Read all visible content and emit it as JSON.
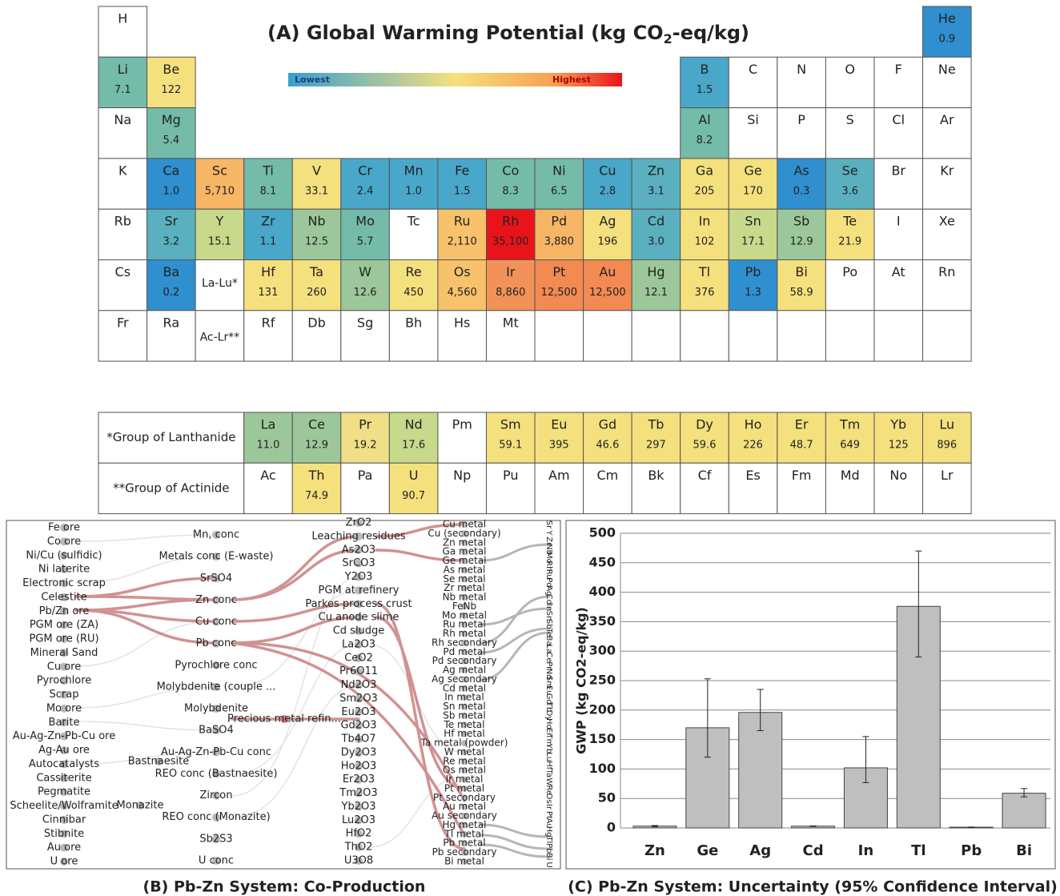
{
  "pt": {
    "title": [
      "(A) Global Warming Potential (kg CO",
      "2",
      "-eq/kg)"
    ],
    "legend": {
      "low": "Lowest",
      "high": "Highest"
    },
    "rows": [
      [
        {
          "symbol": "H"
        },
        null,
        null,
        null,
        null,
        null,
        null,
        null,
        null,
        null,
        null,
        null,
        null,
        null,
        null,
        null,
        null,
        {
          "symbol": "He",
          "value": "0.9",
          "color": "#2f8fcf"
        }
      ],
      [
        {
          "symbol": "Li",
          "value": "7.1",
          "color": "#74bba9"
        },
        {
          "symbol": "Be",
          "value": "122",
          "color": "#f5e07e"
        },
        null,
        null,
        null,
        null,
        null,
        null,
        null,
        null,
        null,
        null,
        {
          "symbol": "B",
          "value": "1.5",
          "color": "#49a7c9"
        },
        {
          "symbol": "C"
        },
        {
          "symbol": "N"
        },
        {
          "symbol": "O"
        },
        {
          "symbol": "F"
        },
        {
          "symbol": "Ne"
        }
      ],
      [
        {
          "symbol": "Na"
        },
        {
          "symbol": "Mg",
          "value": "5.4",
          "color": "#74bba9"
        },
        null,
        null,
        null,
        null,
        null,
        null,
        null,
        null,
        null,
        null,
        {
          "symbol": "Al",
          "value": "8.2",
          "color": "#74bba9"
        },
        {
          "symbol": "Si"
        },
        {
          "symbol": "P"
        },
        {
          "symbol": "S"
        },
        {
          "symbol": "Cl"
        },
        {
          "symbol": "Ar"
        }
      ],
      [
        {
          "symbol": "K"
        },
        {
          "symbol": "Ca",
          "value": "1.0",
          "color": "#2f8fcf"
        },
        {
          "symbol": "Sc",
          "value": "5,710",
          "color": "#f7b566"
        },
        {
          "symbol": "Ti",
          "value": "8.1",
          "color": "#74bba9"
        },
        {
          "symbol": "V",
          "value": "33.1",
          "color": "#f5e07e"
        },
        {
          "symbol": "Cr",
          "value": "2.4",
          "color": "#49a7c9"
        },
        {
          "symbol": "Mn",
          "value": "1.0",
          "color": "#49a7c9"
        },
        {
          "symbol": "Fe",
          "value": "1.5",
          "color": "#49a7c9"
        },
        {
          "symbol": "Co",
          "value": "8.3",
          "color": "#74bba9"
        },
        {
          "symbol": "Ni",
          "value": "6.5",
          "color": "#74bba9"
        },
        {
          "symbol": "Cu",
          "value": "2.8",
          "color": "#49a7c9"
        },
        {
          "symbol": "Zn",
          "value": "3.1",
          "color": "#5bb0bf"
        },
        {
          "symbol": "Ga",
          "value": "205",
          "color": "#f5e07e"
        },
        {
          "symbol": "Ge",
          "value": "170",
          "color": "#f5e07e"
        },
        {
          "symbol": "As",
          "value": "0.3",
          "color": "#2f8fcf"
        },
        {
          "symbol": "Se",
          "value": "3.6",
          "color": "#5bb0bf"
        },
        {
          "symbol": "Br"
        },
        {
          "symbol": "Kr"
        }
      ],
      [
        {
          "symbol": "Rb"
        },
        {
          "symbol": "Sr",
          "value": "3.2",
          "color": "#5bb0bf"
        },
        {
          "symbol": "Y",
          "value": "15.1",
          "color": "#c7d98a"
        },
        {
          "symbol": "Zr",
          "value": "1.1",
          "color": "#49a7c9"
        },
        {
          "symbol": "Nb",
          "value": "12.5",
          "color": "#9cc79a"
        },
        {
          "symbol": "Mo",
          "value": "5.7",
          "color": "#74bba9"
        },
        {
          "symbol": "Tc"
        },
        {
          "symbol": "Ru",
          "value": "2,110",
          "color": "#f7c26b"
        },
        {
          "symbol": "Rh",
          "value": "35,100",
          "color": "#e8141a"
        },
        {
          "symbol": "Pd",
          "value": "3,880",
          "color": "#f7b566"
        },
        {
          "symbol": "Ag",
          "value": "196",
          "color": "#f5e07e"
        },
        {
          "symbol": "Cd",
          "value": "3.0",
          "color": "#5bb0bf"
        },
        {
          "symbol": "In",
          "value": "102",
          "color": "#f5e07e"
        },
        {
          "symbol": "Sn",
          "value": "17.1",
          "color": "#c7d98a"
        },
        {
          "symbol": "Sb",
          "value": "12.9",
          "color": "#9cc79a"
        },
        {
          "symbol": "Te",
          "value": "21.9",
          "color": "#f5e07e"
        },
        {
          "symbol": "I"
        },
        {
          "symbol": "Xe"
        }
      ],
      [
        {
          "symbol": "Cs"
        },
        {
          "symbol": "Ba",
          "value": "0.2",
          "color": "#2f8fcf"
        },
        {
          "symbol": "La-Lu*"
        },
        {
          "symbol": "Hf",
          "value": "131",
          "color": "#f5e07e"
        },
        {
          "symbol": "Ta",
          "value": "260",
          "color": "#f5e07e"
        },
        {
          "symbol": "W",
          "value": "12.6",
          "color": "#9cc79a"
        },
        {
          "symbol": "Re",
          "value": "450",
          "color": "#f5e07e"
        },
        {
          "symbol": "Os",
          "value": "4,560",
          "color": "#f7c26b"
        },
        {
          "symbol": "Ir",
          "value": "8,860",
          "color": "#f29258"
        },
        {
          "symbol": "Pt",
          "value": "12,500",
          "color": "#f28a52"
        },
        {
          "symbol": "Au",
          "value": "12,500",
          "color": "#f28a52"
        },
        {
          "symbol": "Hg",
          "value": "12.1",
          "color": "#9cc79a"
        },
        {
          "symbol": "Tl",
          "value": "376",
          "color": "#f5e07e"
        },
        {
          "symbol": "Pb",
          "value": "1.3",
          "color": "#2f8fcf"
        },
        {
          "symbol": "Bi",
          "value": "58.9",
          "color": "#f5e07e"
        },
        {
          "symbol": "Po"
        },
        {
          "symbol": "At"
        },
        {
          "symbol": "Rn"
        }
      ],
      [
        {
          "symbol": "Fr"
        },
        {
          "symbol": "Ra"
        },
        {
          "symbol": "Ac-Lr**"
        },
        {
          "symbol": "Rf"
        },
        {
          "symbol": "Db"
        },
        {
          "symbol": "Sg"
        },
        {
          "symbol": "Bh"
        },
        {
          "symbol": "Hs"
        },
        {
          "symbol": "Mt"
        }
      ]
    ]
  },
  "f_block": {
    "rows": [
      {
        "label": "*Group of Lanthanide",
        "cells": [
          {
            "symbol": "La",
            "value": "11.0",
            "color": "#9cc79a"
          },
          {
            "symbol": "Ce",
            "value": "12.9",
            "color": "#9cc79a"
          },
          {
            "symbol": "Pr",
            "value": "19.2",
            "color": "#f0df86"
          },
          {
            "symbol": "Nd",
            "value": "17.6",
            "color": "#c7d98a"
          },
          {
            "symbol": "Pm"
          },
          {
            "symbol": "Sm",
            "value": "59.1",
            "color": "#f5e07e"
          },
          {
            "symbol": "Eu",
            "value": "395",
            "color": "#f5e07e"
          },
          {
            "symbol": "Gd",
            "value": "46.6",
            "color": "#f5e07e"
          },
          {
            "symbol": "Tb",
            "value": "297",
            "color": "#f5e07e"
          },
          {
            "symbol": "Dy",
            "value": "59.6",
            "color": "#f5e07e"
          },
          {
            "symbol": "Ho",
            "value": "226",
            "color": "#f5e07e"
          },
          {
            "symbol": "Er",
            "value": "48.7",
            "color": "#f5e07e"
          },
          {
            "symbol": "Tm",
            "value": "649",
            "color": "#f5e07e"
          },
          {
            "symbol": "Yb",
            "value": "125",
            "color": "#f5e07e"
          },
          {
            "symbol": "Lu",
            "value": "896",
            "color": "#f5e07e"
          }
        ]
      },
      {
        "label": "**Group of Actinide",
        "cells": [
          {
            "symbol": "Ac"
          },
          {
            "symbol": "Th",
            "value": "74.9",
            "color": "#f5e07e"
          },
          {
            "symbol": "Pa"
          },
          {
            "symbol": "U",
            "value": "90.7",
            "color": "#f5e07e"
          },
          {
            "symbol": "Np"
          },
          {
            "symbol": "Pu"
          },
          {
            "symbol": "Am"
          },
          {
            "symbol": "Cm"
          },
          {
            "symbol": "Bk"
          },
          {
            "symbol": "Cf"
          },
          {
            "symbol": "Es"
          },
          {
            "symbol": "Fm"
          },
          {
            "symbol": "Md"
          },
          {
            "symbol": "No"
          },
          {
            "symbol": "Lr"
          }
        ]
      }
    ]
  },
  "network": {
    "title": "(B) Pb-Zn System: Co-Production",
    "col1": [
      "Fe ore",
      "Co ore",
      "Ni/Cu (sulfidic)",
      "Ni laterite",
      "Electronic scrap",
      "Celestite",
      "Pb/Zn ore",
      "PGM ore (ZA)",
      "PGM ore (RU)",
      "Mineral Sand",
      "Cu ore",
      "Pyrochlore",
      "Scrap",
      "Mo ore",
      "Barite",
      "Au-Ag-Zn-Pb-Cu ore",
      "Ag-Au ore",
      "Autocatalysts",
      "Cassiterite",
      "Pegmatite",
      "Scheelite/Wolframite",
      "Cinnibar",
      "Stibnite",
      "Au ore",
      "U ore"
    ],
    "col2": [
      "Mn, conc",
      "Metals conc (E-waste)",
      "SrSO4",
      "Zn conc",
      "Cu conc",
      "Pb conc",
      "Pyrochlore conc",
      "Molybdenite (couple ...",
      "Molybdenite",
      "BaSO4",
      "Au-Ag-Zn-Pb-Cu conc",
      "REO conc (Bastnaesite)",
      "Zircon",
      "REO conc (Monazite)",
      "Sb2S3",
      "U conc"
    ],
    "col3": [
      "ZrO2",
      "Leaching residues",
      "As2O3",
      "SrCO3",
      "Y2O3",
      "PGM at refinery",
      "Parkes process crust",
      "Cu anode slime",
      "Cd sludge",
      "La2O3",
      "CeO2",
      "Pr6O11",
      "Nd2O3",
      "Sm2O3",
      "Eu2O3",
      "Gd2O3",
      "Tb4O7",
      "Dy2O3",
      "Ho2O3",
      "Er2O3",
      "Tm2O3",
      "Yb2O3",
      "Lu2O3",
      "HfO2",
      "ThO2",
      "U3O8"
    ],
    "col4": [
      "Cu metal",
      "Cu (secondary)",
      "Zn metal",
      "Ga metal",
      "Ge metal",
      "As metal",
      "Se metal",
      "Zr metal",
      "Nb metal",
      "FeNb",
      "Mo metal",
      "Ru metal",
      "Rh metal",
      "Rh secondary",
      "Pd metal",
      "Pd secondary",
      "Ag metal",
      "Ag secondary",
      "Cd metal",
      "In metal",
      "Sn metal",
      "Sb metal",
      "Te metal",
      "Hf metal",
      "Ta metal (powder)",
      "W metal",
      "Re metal",
      "Os metal",
      "Ir metal",
      "Pt metal",
      "Pt secondary",
      "Au metal",
      "Au secondary",
      "Hg metal",
      "Tl metal",
      "Pb metal",
      "Pb secondary",
      "Bi metal"
    ],
    "col5": [
      "Sr",
      "Y",
      "Zr",
      "Nb",
      "Mo",
      "Rh",
      "Ru",
      "Pd",
      "Ag",
      "Cd",
      "In",
      "Sn",
      "Sb",
      "Te",
      "Ba",
      "La",
      "Ce",
      "Pr",
      "Nd",
      "Sm",
      "Eu",
      "Gd",
      "Tb",
      "Dy",
      "Ho",
      "Er",
      "Tm",
      "Yb",
      "Lu",
      "Hf",
      "Ta",
      "W",
      "Re",
      "Os",
      "Ir",
      "Pt",
      "Au",
      "Hg",
      "Tl",
      "Pb",
      "Bi",
      "U"
    ],
    "extra": [
      "Monazite",
      "Bastnaesite",
      "Precious metal refin..."
    ]
  },
  "chart_data": {
    "type": "bar",
    "title": "(C) Pb-Zn System: Uncertainty (95% Confidence Interval)",
    "ylabel": "GWP (kg CO2-eq/kg)",
    "categories": [
      "Zn",
      "Ge",
      "Ag",
      "Cd",
      "In",
      "Tl",
      "Pb",
      "Bi"
    ],
    "values": [
      3.1,
      170,
      196,
      3.0,
      102,
      376,
      1.3,
      58.9
    ],
    "error_upper": [
      1,
      83,
      39,
      0.5,
      53,
      94,
      0.3,
      8
    ],
    "error_lower": [
      1,
      50,
      31,
      0.5,
      25,
      86,
      0.3,
      6
    ],
    "color": "#bfbfbf",
    "ylim": [
      0,
      500
    ],
    "yticks": [
      0,
      50,
      100,
      150,
      200,
      250,
      300,
      350,
      400,
      450,
      500
    ],
    "grid": true
  }
}
